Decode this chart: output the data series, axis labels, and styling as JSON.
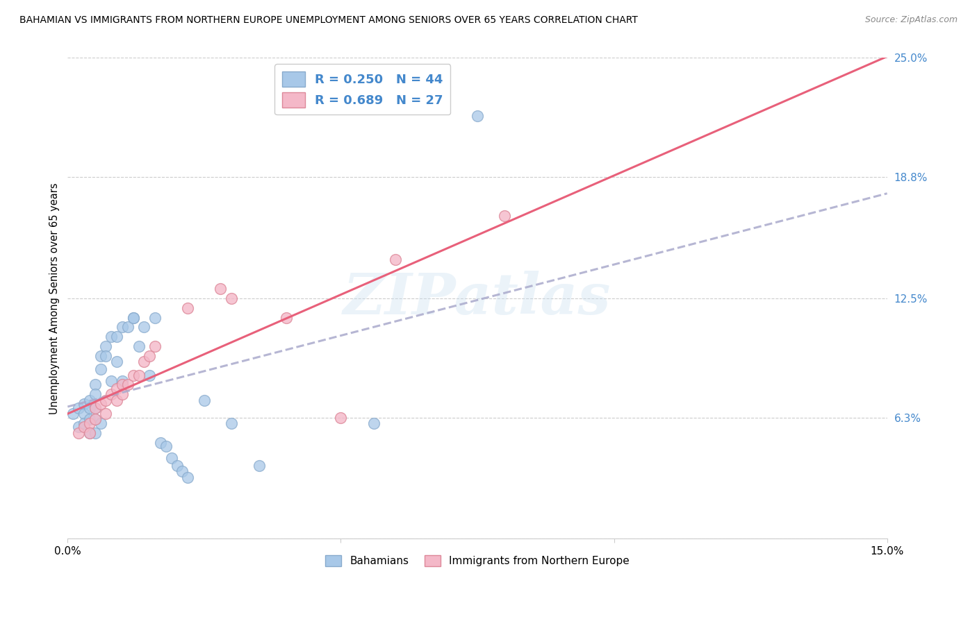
{
  "title": "BAHAMIAN VS IMMIGRANTS FROM NORTHERN EUROPE UNEMPLOYMENT AMONG SENIORS OVER 65 YEARS CORRELATION CHART",
  "source": "Source: ZipAtlas.com",
  "ylabel": "Unemployment Among Seniors over 65 years",
  "xmin": 0.0,
  "xmax": 0.15,
  "ymin": 0.0,
  "ymax": 0.25,
  "yticks": [
    0.0,
    0.063,
    0.125,
    0.188,
    0.25
  ],
  "ytick_labels": [
    "",
    "6.3%",
    "12.5%",
    "18.8%",
    "25.0%"
  ],
  "xticks": [
    0.0,
    0.05,
    0.1,
    0.15
  ],
  "xtick_labels": [
    "0.0%",
    "",
    "",
    "15.0%"
  ],
  "watermark": "ZIPatlas",
  "blue_R": 0.25,
  "blue_N": 44,
  "pink_R": 0.689,
  "pink_N": 27,
  "blue_color": "#a8c8e8",
  "pink_color": "#f4b8c8",
  "blue_line_color": "#aaaacc",
  "pink_line_color": "#e8607a",
  "legend_label_blue": "Bahamians",
  "legend_label_pink": "Immigrants from Northern Europe",
  "blue_points_x": [
    0.001,
    0.002,
    0.002,
    0.003,
    0.003,
    0.003,
    0.004,
    0.004,
    0.004,
    0.004,
    0.005,
    0.005,
    0.005,
    0.005,
    0.005,
    0.006,
    0.006,
    0.006,
    0.007,
    0.007,
    0.008,
    0.008,
    0.009,
    0.009,
    0.01,
    0.01,
    0.011,
    0.012,
    0.012,
    0.013,
    0.014,
    0.015,
    0.016,
    0.017,
    0.018,
    0.019,
    0.02,
    0.021,
    0.022,
    0.025,
    0.03,
    0.035,
    0.056,
    0.075
  ],
  "blue_points_y": [
    0.065,
    0.068,
    0.058,
    0.07,
    0.065,
    0.06,
    0.072,
    0.068,
    0.062,
    0.055,
    0.08,
    0.075,
    0.068,
    0.062,
    0.055,
    0.095,
    0.088,
    0.06,
    0.1,
    0.095,
    0.105,
    0.082,
    0.105,
    0.092,
    0.11,
    0.082,
    0.11,
    0.115,
    0.115,
    0.1,
    0.11,
    0.085,
    0.115,
    0.05,
    0.048,
    0.042,
    0.038,
    0.035,
    0.032,
    0.072,
    0.06,
    0.038,
    0.06,
    0.22
  ],
  "pink_points_x": [
    0.002,
    0.003,
    0.004,
    0.004,
    0.005,
    0.005,
    0.006,
    0.007,
    0.007,
    0.008,
    0.009,
    0.009,
    0.01,
    0.01,
    0.011,
    0.012,
    0.013,
    0.014,
    0.015,
    0.016,
    0.022,
    0.028,
    0.03,
    0.04,
    0.05,
    0.06,
    0.08
  ],
  "pink_points_y": [
    0.055,
    0.058,
    0.06,
    0.055,
    0.068,
    0.062,
    0.07,
    0.072,
    0.065,
    0.075,
    0.078,
    0.072,
    0.08,
    0.075,
    0.08,
    0.085,
    0.085,
    0.092,
    0.095,
    0.1,
    0.12,
    0.13,
    0.125,
    0.115,
    0.063,
    0.145,
    0.168
  ]
}
